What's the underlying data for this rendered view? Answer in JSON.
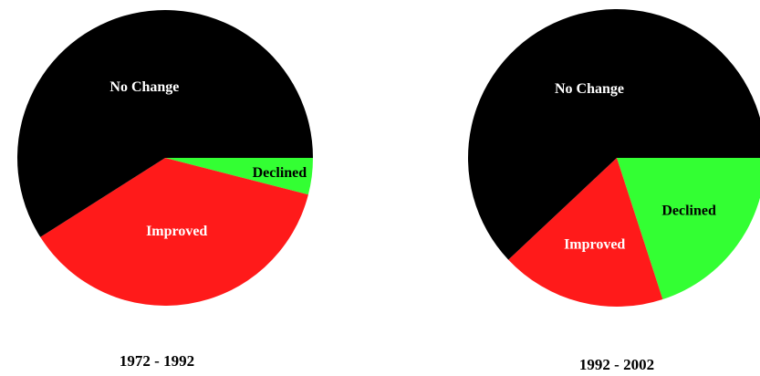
{
  "chart_data": [
    {
      "type": "pie",
      "title": "1972 - 1992",
      "slices": [
        {
          "label": "Declined",
          "value": 4,
          "color": "#33ff33",
          "label_color": "#000000"
        },
        {
          "label": "Improved",
          "value": 37,
          "color": "#ff1a1a",
          "label_color": "#ffffff"
        },
        {
          "label": "No Change",
          "value": 59,
          "color": "#000000",
          "label_color": "#ffffff"
        }
      ]
    },
    {
      "type": "pie",
      "title": "1992 - 2002",
      "slices": [
        {
          "label": "Declined",
          "value": 20,
          "color": "#33ff33",
          "label_color": "#000000"
        },
        {
          "label": "Improved",
          "value": 18,
          "color": "#ff1a1a",
          "label_color": "#ffffff"
        },
        {
          "label": "No Change",
          "value": 62,
          "color": "#000000",
          "label_color": "#ffffff"
        }
      ]
    }
  ]
}
